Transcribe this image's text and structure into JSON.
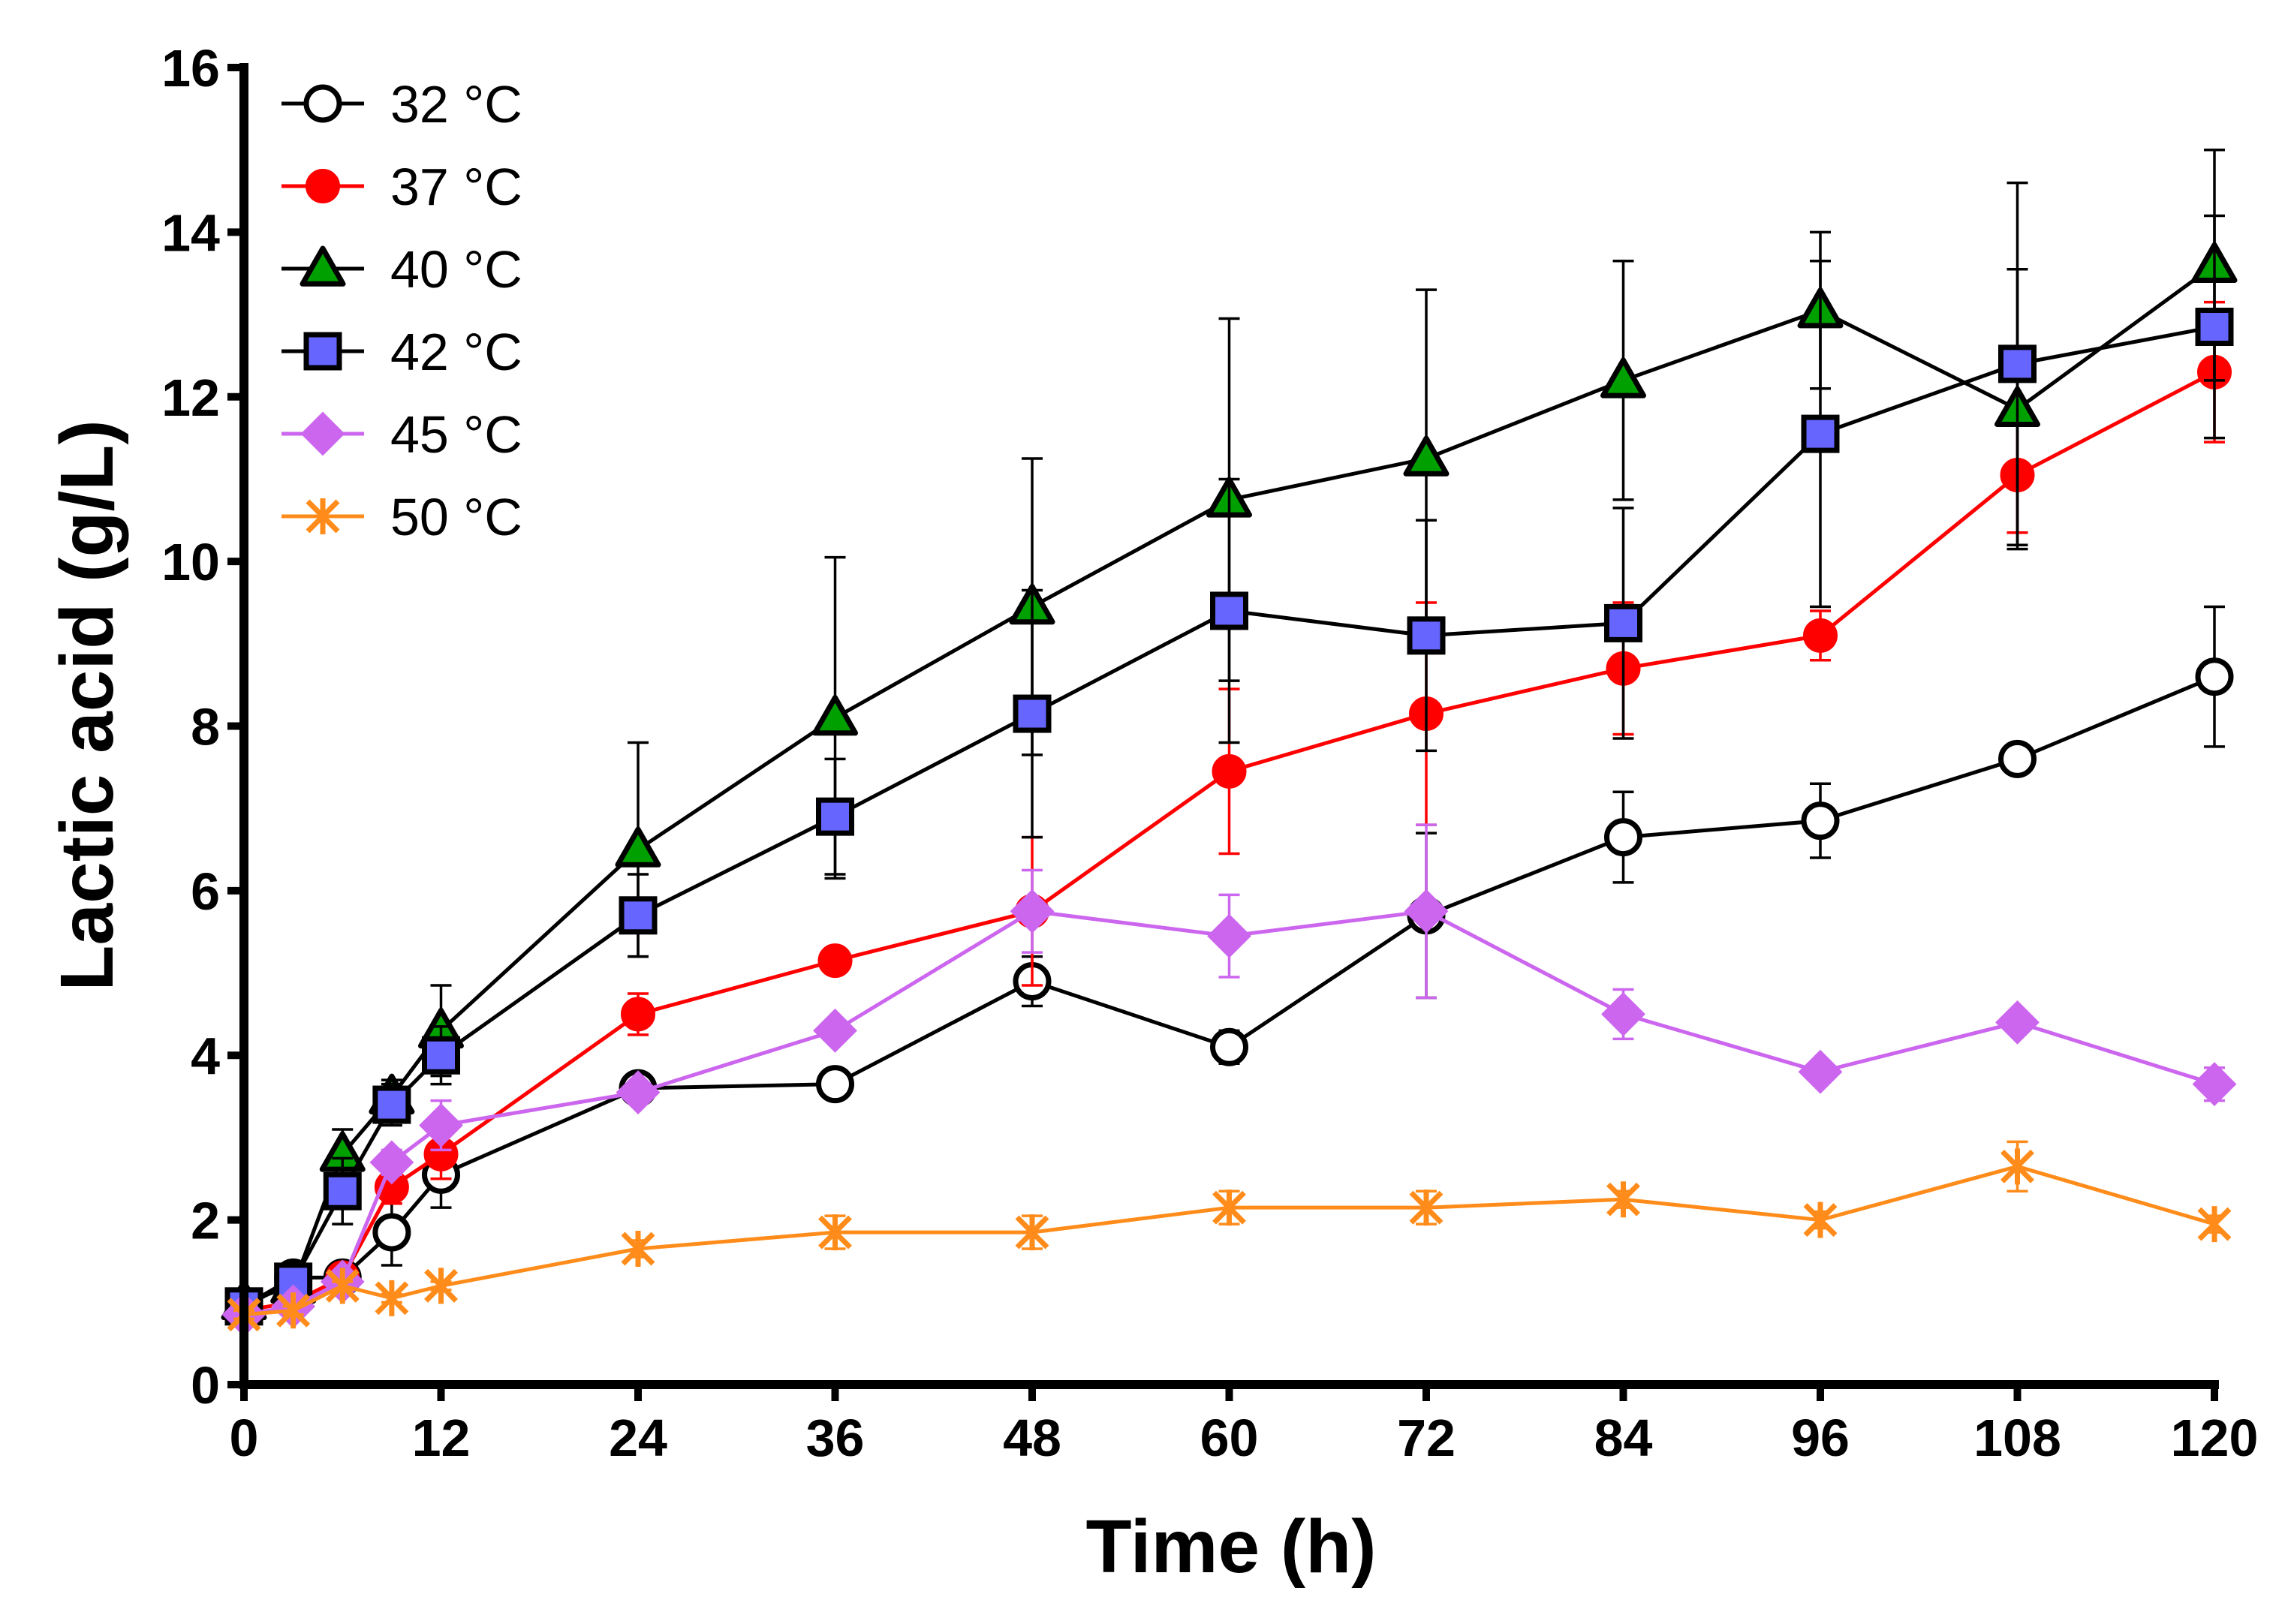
{
  "chart_data": {
    "type": "line",
    "title": "",
    "xlabel": "Time (h)",
    "ylabel": "Lactic acid (g/L)",
    "xlim": [
      0,
      120
    ],
    "ylim": [
      0,
      16
    ],
    "xticks": [
      0,
      12,
      24,
      36,
      48,
      60,
      72,
      84,
      96,
      108,
      120
    ],
    "yticks": [
      0,
      2,
      4,
      6,
      8,
      10,
      12,
      14,
      16
    ],
    "grid": false,
    "legend_position": "top-left",
    "x": [
      0,
      3,
      6,
      9,
      12,
      24,
      36,
      48,
      60,
      72,
      84,
      96,
      108,
      120
    ],
    "series": [
      {
        "name": "32 °C",
        "color": "#000000",
        "line_color": "#000000",
        "marker": "circle-open",
        "values": [
          0.95,
          1.3,
          1.3,
          1.85,
          2.55,
          3.6,
          3.65,
          4.9,
          4.1,
          5.7,
          6.65,
          6.85,
          7.6,
          8.6
        ],
        "errors": [
          0.1,
          0.15,
          0.15,
          0.4,
          0.4,
          0.1,
          0.1,
          0.3,
          0.2,
          1.0,
          0.55,
          0.45,
          0.1,
          0.85
        ]
      },
      {
        "name": "37 °C",
        "color": "#ff0000",
        "line_color": "#ff0000",
        "marker": "circle-filled",
        "values": [
          0.9,
          1.0,
          1.3,
          2.4,
          2.8,
          4.5,
          5.15,
          5.75,
          7.45,
          8.15,
          8.7,
          9.1,
          11.05,
          12.3
        ],
        "errors": [
          0.1,
          0.1,
          0.1,
          0.2,
          0.3,
          0.25,
          0.1,
          0.9,
          1.0,
          1.35,
          0.8,
          0.3,
          0.7,
          0.85
        ]
      },
      {
        "name": "40 °C",
        "color": "#00a000",
        "line_color": "#000000",
        "marker": "triangle",
        "values": [
          1.0,
          1.2,
          2.8,
          3.5,
          4.3,
          6.5,
          8.1,
          9.45,
          10.75,
          11.25,
          12.2,
          13.05,
          11.85,
          13.6
        ],
        "errors": [
          0.1,
          0.2,
          0.3,
          0.2,
          0.55,
          1.3,
          1.95,
          1.8,
          2.2,
          2.05,
          1.45,
          0.95,
          1.7,
          1.4
        ]
      },
      {
        "name": "42 °C",
        "color": "#6666ff",
        "line_color": "#000000",
        "marker": "square",
        "values": [
          0.95,
          1.25,
          2.35,
          3.4,
          4.0,
          5.7,
          6.9,
          8.15,
          9.4,
          9.1,
          9.25,
          11.55,
          12.4,
          12.85
        ],
        "errors": [
          0.1,
          0.15,
          0.4,
          0.25,
          0.35,
          0.5,
          0.7,
          1.5,
          1.6,
          1.4,
          1.4,
          2.1,
          2.2,
          1.35
        ]
      },
      {
        "name": "45 °C",
        "color": "#cc66ee",
        "line_color": "#cc66ee",
        "marker": "diamond",
        "values": [
          0.85,
          0.95,
          1.25,
          2.7,
          3.15,
          3.55,
          4.3,
          5.75,
          5.45,
          5.75,
          4.5,
          3.8,
          4.4,
          3.65
        ],
        "errors": [
          0.05,
          0.05,
          0.1,
          0.15,
          0.3,
          0.1,
          0.1,
          0.5,
          0.5,
          1.05,
          0.3,
          0.1,
          0.1,
          0.2
        ]
      },
      {
        "name": "50 °C",
        "color": "#ff8c1a",
        "line_color": "#ff8c1a",
        "marker": "asterisk",
        "values": [
          0.85,
          0.9,
          1.2,
          1.05,
          1.2,
          1.65,
          1.85,
          1.85,
          2.15,
          2.15,
          2.25,
          2.0,
          2.65,
          1.95
        ],
        "errors": [
          0.05,
          0.05,
          0.05,
          0.05,
          0.05,
          0.1,
          0.2,
          0.2,
          0.2,
          0.2,
          0.1,
          0.1,
          0.3,
          0.1
        ]
      }
    ]
  }
}
